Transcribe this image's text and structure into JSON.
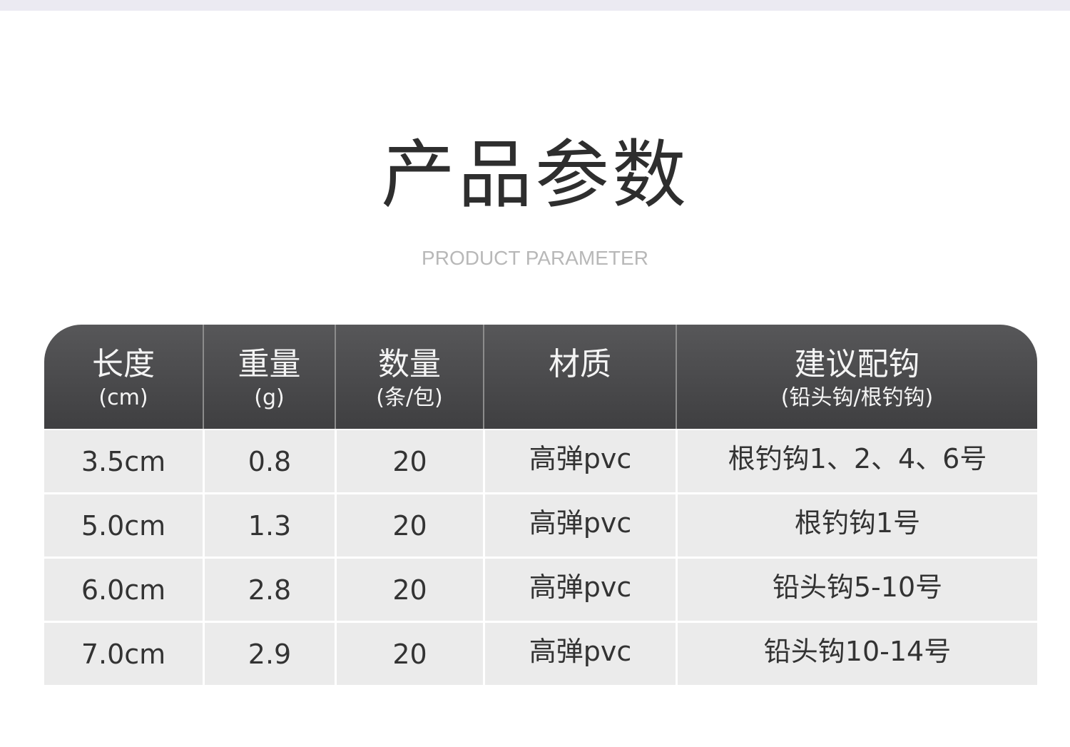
{
  "title": "产品参数",
  "subtitle": "PRODUCT PARAMETER",
  "table": {
    "headers": [
      {
        "main": "长度",
        "sub": "(cm)"
      },
      {
        "main": "重量",
        "sub": "(g)"
      },
      {
        "main": "数量",
        "sub": "(条/包)"
      },
      {
        "main": "材质",
        "sub": ""
      },
      {
        "main": "建议配钩",
        "sub": "(铅头钩/根钓钩)"
      }
    ],
    "rows": [
      [
        "3.5cm",
        "0.8",
        "20",
        "高弹pvc",
        "根钓钩1、2、4、6号"
      ],
      [
        "5.0cm",
        "1.3",
        "20",
        "高弹pvc",
        "根钓钩1号"
      ],
      [
        "6.0cm",
        "2.8",
        "20",
        "高弹pvc",
        "铅头钩5-10号"
      ],
      [
        "7.0cm",
        "2.9",
        "20",
        "高弹pvc",
        "铅头钩10-14号"
      ]
    ]
  }
}
